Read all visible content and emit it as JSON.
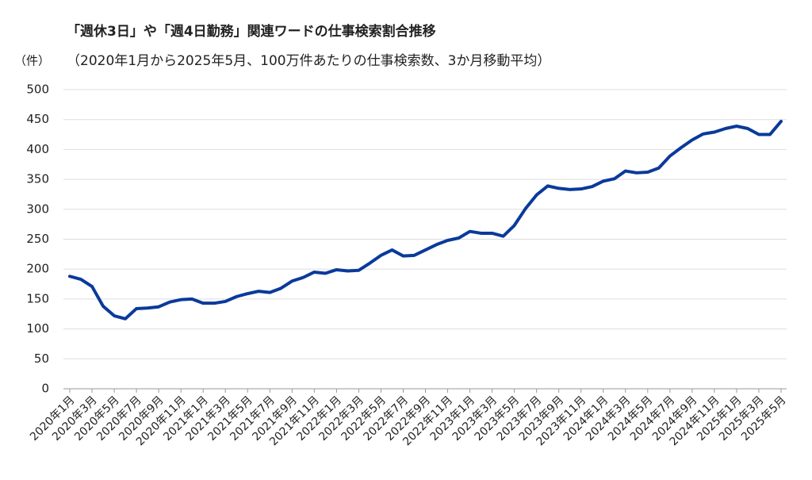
{
  "chart_data": {
    "type": "line",
    "title": "「週休3日」や「週4日勤務」関連ワードの仕事検索割合推移",
    "subtitle": "（2020年1月から2025年5月、100万件あたりの仕事検索数、3か月移動平均）",
    "y_label": "（件）",
    "categories": [
      "2020年1月",
      null,
      "2020年3月",
      null,
      "2020年5月",
      null,
      "2020年7月",
      null,
      "2020年9月",
      null,
      "2020年11月",
      null,
      "2021年1月",
      null,
      "2021年3月",
      null,
      "2021年5月",
      null,
      "2021年7月",
      null,
      "2021年9月",
      null,
      "2021年11月",
      null,
      "2022年1月",
      null,
      "2022年3月",
      null,
      "2022年5月",
      null,
      "2022年7月",
      null,
      "2022年9月",
      null,
      "2022年11月",
      null,
      "2023年1月",
      null,
      "2023年3月",
      null,
      "2023年5月",
      null,
      "2023年7月",
      null,
      "2023年9月",
      null,
      "2023年11月",
      null,
      "2024年1月",
      null,
      "2024年3月",
      null,
      "2024年5月",
      null,
      "2024年7月",
      null,
      "2024年9月",
      null,
      "2024年11月",
      null,
      "2025年1月",
      null,
      "2025年3月",
      null,
      "2025年5月"
    ],
    "values": [
      188,
      183,
      171,
      138,
      122,
      117,
      134,
      135,
      137,
      145,
      149,
      150,
      143,
      143,
      146,
      154,
      159,
      163,
      161,
      168,
      180,
      186,
      195,
      193,
      199,
      197,
      198,
      210,
      223,
      232,
      222,
      223,
      232,
      241,
      248,
      252,
      263,
      260,
      260,
      255,
      273,
      301,
      324,
      339,
      335,
      333,
      334,
      338,
      347,
      351,
      364,
      361,
      362,
      369,
      389,
      403,
      416,
      426,
      429,
      435,
      439,
      435,
      425,
      425,
      447
    ],
    "color": "#0a3a9a",
    "ylim": [
      0,
      500
    ],
    "yticks": [
      0,
      50,
      100,
      150,
      200,
      250,
      300,
      350,
      400,
      450,
      500
    ],
    "grid": true
  }
}
